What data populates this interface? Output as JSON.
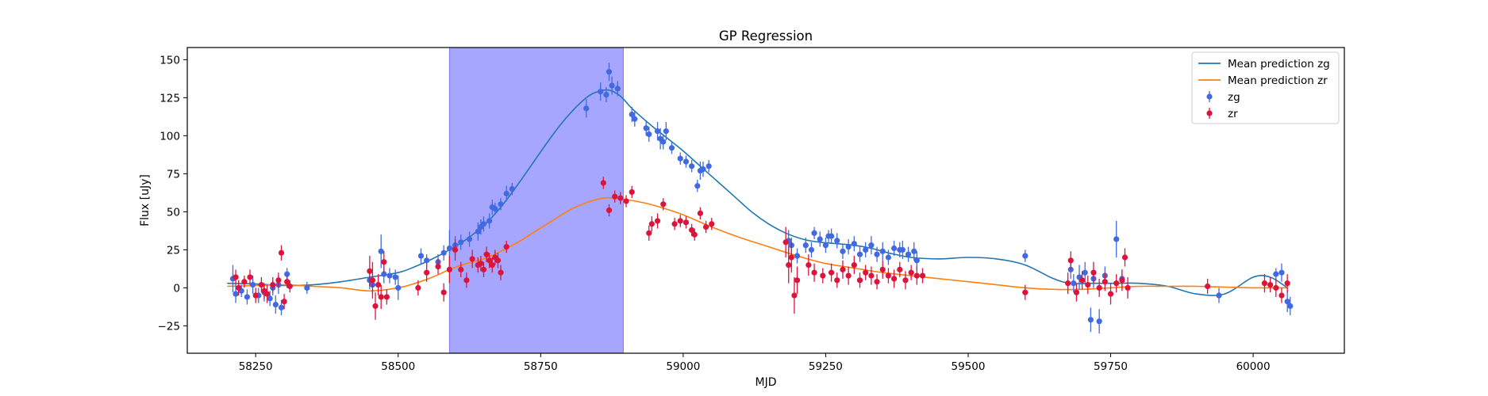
{
  "chart_data": {
    "type": "scatter",
    "title": "GP Regression",
    "xlabel": "MJD",
    "ylabel": "Flux [uJy]",
    "xlim": [
      58130,
      60160
    ],
    "ylim": [
      -43,
      158
    ],
    "xticks": [
      58250,
      58500,
      58750,
      59000,
      59250,
      59500,
      59750,
      60000
    ],
    "yticks": [
      -25,
      0,
      25,
      50,
      75,
      100,
      125,
      150
    ],
    "grid": false,
    "legend_position": "top-right",
    "shaded_region": {
      "x_start": 58590,
      "x_end": 58895,
      "color": "#a6a6ff"
    },
    "colors": {
      "zg_points": "#4169e1",
      "zr_points": "#dc143c",
      "zg_line": "#1f77b4",
      "zr_line": "#ff7f0e"
    },
    "legend": [
      {
        "label": "Mean prediction zg",
        "kind": "line",
        "color": "#1f77b4"
      },
      {
        "label": "Mean prediction zr",
        "kind": "line",
        "color": "#ff7f0e"
      },
      {
        "label": "zg",
        "kind": "errorbar",
        "color": "#4169e1"
      },
      {
        "label": "zr",
        "kind": "errorbar",
        "color": "#dc143c"
      }
    ],
    "lines": [
      {
        "name": "Mean prediction zg",
        "color": "#1f77b4",
        "x": [
          58200,
          58250,
          58300,
          58350,
          58400,
          58450,
          58500,
          58530,
          58560,
          58590,
          58620,
          58650,
          58680,
          58710,
          58740,
          58770,
          58800,
          58830,
          58850,
          58870,
          58890,
          58910,
          58940,
          58970,
          59000,
          59030,
          59060,
          59090,
          59120,
          59150,
          59180,
          59210,
          59240,
          59270,
          59300,
          59330,
          59360,
          59400,
          59450,
          59500,
          59550,
          59600,
          59650,
          59680,
          59720,
          59760,
          59800,
          59850,
          59900,
          59950,
          60000,
          60030,
          60060
        ],
        "y": [
          3,
          2.5,
          1.5,
          2,
          4,
          7,
          10,
          14,
          19,
          25,
          32,
          41,
          53,
          68,
          84,
          100,
          114,
          125,
          129,
          130,
          126,
          118,
          108,
          99,
          90,
          80,
          70,
          60,
          50,
          42,
          36,
          32,
          30,
          29,
          28,
          26,
          23,
          20,
          19,
          20,
          19,
          15,
          6,
          3,
          3,
          3,
          3,
          1,
          -4,
          -4,
          7,
          7,
          0
        ]
      },
      {
        "name": "Mean prediction zr",
        "color": "#ff7f0e",
        "x": [
          58200,
          58250,
          58300,
          58350,
          58400,
          58450,
          58500,
          58530,
          58560,
          58590,
          58620,
          58650,
          58680,
          58710,
          58740,
          58770,
          58800,
          58830,
          58860,
          58880,
          58900,
          58930,
          58960,
          59000,
          59050,
          59100,
          59150,
          59200,
          59250,
          59300,
          59350,
          59400,
          59450,
          59500,
          59550,
          59600,
          59650,
          59700,
          59750,
          59800,
          59850,
          59900,
          59950,
          60000,
          60060
        ],
        "y": [
          1,
          1.5,
          2,
          1,
          0,
          -2,
          0,
          3,
          7,
          12,
          16,
          19,
          24,
          30,
          37,
          44,
          51,
          56,
          59,
          59,
          58,
          56,
          53,
          48,
          40,
          33,
          27,
          21,
          16,
          13,
          10,
          8,
          6,
          4,
          2,
          0,
          -1,
          -1,
          0,
          1,
          1,
          1,
          0.5,
          0,
          0
        ]
      }
    ],
    "series": [
      {
        "name": "zg",
        "color": "#4169e1",
        "x": [
          58210,
          58215,
          58225,
          58235,
          58245,
          58255,
          58265,
          58275,
          58280,
          58285,
          58290,
          58295,
          58305,
          58340,
          58450,
          58455,
          58470,
          58475,
          58485,
          58495,
          58500,
          58540,
          58550,
          58570,
          58580,
          58590,
          58600,
          58610,
          58625,
          58640,
          58645,
          58650,
          58660,
          58665,
          58670,
          58680,
          58690,
          58700,
          58830,
          58855,
          58865,
          58870,
          58875,
          58885,
          58910,
          58915,
          58935,
          58940,
          58955,
          58960,
          58965,
          58970,
          58980,
          58995,
          59005,
          59015,
          59025,
          59030,
          59035,
          59045,
          59185,
          59190,
          59200,
          59215,
          59225,
          59230,
          59240,
          59250,
          59255,
          59260,
          59270,
          59280,
          59290,
          59300,
          59310,
          59320,
          59330,
          59340,
          59350,
          59360,
          59370,
          59380,
          59385,
          59395,
          59405,
          59410,
          59600,
          59680,
          59685,
          59695,
          59705,
          59715,
          59720,
          59730,
          59740,
          59760,
          59770,
          59940,
          60040,
          60050,
          60060,
          60065
        ],
        "y": [
          6,
          -4,
          -2,
          -6,
          2,
          -5,
          -3,
          -7,
          0,
          -11,
          2,
          -13,
          9,
          0,
          5,
          2,
          24,
          9,
          8,
          7,
          0,
          21,
          18,
          17,
          23,
          26,
          28,
          30,
          32,
          37,
          40,
          42,
          44,
          53,
          52,
          55,
          62,
          65,
          118,
          129,
          127,
          142,
          133,
          131,
          114,
          111,
          105,
          101,
          103,
          98,
          96,
          103,
          92,
          85,
          83,
          80,
          67,
          77,
          78,
          80,
          31,
          28,
          21,
          28,
          25,
          36,
          32,
          28,
          34,
          34,
          31,
          24,
          27,
          29,
          22,
          25,
          28,
          22,
          24,
          20,
          26,
          25,
          25,
          22,
          24,
          18,
          21,
          12,
          3,
          7,
          10,
          -21,
          6,
          -22,
          8,
          32,
          6,
          -5,
          9,
          10,
          -9,
          -12
        ],
        "err": [
          9,
          6,
          4,
          5,
          6,
          5,
          6,
          5,
          5,
          6,
          6,
          5,
          4,
          4,
          6,
          6,
          11,
          6,
          5,
          5,
          8,
          5,
          4,
          5,
          5,
          12,
          6,
          5,
          5,
          6,
          5,
          5,
          5,
          5,
          4,
          4,
          5,
          4,
          6,
          6,
          5,
          6,
          6,
          5,
          5,
          5,
          5,
          5,
          6,
          7,
          5,
          6,
          4,
          4,
          4,
          4,
          4,
          6,
          5,
          4,
          7,
          5,
          5,
          5,
          5,
          4,
          5,
          5,
          4,
          5,
          5,
          5,
          5,
          5,
          5,
          5,
          6,
          5,
          6,
          5,
          5,
          5,
          6,
          5,
          6,
          6,
          4,
          6,
          6,
          8,
          7,
          8,
          6,
          8,
          6,
          12,
          6,
          5,
          4,
          6,
          7,
          6
        ]
      },
      {
        "name": "zr",
        "color": "#dc143c",
        "x": [
          58215,
          58220,
          58230,
          58240,
          58250,
          58260,
          58265,
          58270,
          58280,
          58290,
          58295,
          58300,
          58305,
          58310,
          58450,
          58455,
          58460,
          58465,
          58470,
          58475,
          58480,
          58535,
          58550,
          58570,
          58580,
          58590,
          58600,
          58610,
          58620,
          58630,
          58640,
          58645,
          58650,
          58655,
          58660,
          58665,
          58670,
          58675,
          58680,
          58690,
          58860,
          58870,
          58880,
          58890,
          58900,
          58910,
          58940,
          58945,
          58955,
          58965,
          58985,
          58995,
          59005,
          59015,
          59020,
          59030,
          59040,
          59050,
          59180,
          59185,
          59190,
          59195,
          59200,
          59220,
          59230,
          59245,
          59260,
          59270,
          59280,
          59290,
          59300,
          59310,
          59320,
          59330,
          59340,
          59350,
          59360,
          59370,
          59380,
          59390,
          59400,
          59410,
          59420,
          59600,
          59675,
          59680,
          59690,
          59700,
          59710,
          59720,
          59730,
          59740,
          59750,
          59760,
          59770,
          59775,
          59780,
          59920,
          60020,
          60030,
          60040,
          60050,
          60060
        ],
        "y": [
          7,
          0,
          4,
          7,
          -5,
          2,
          -2,
          -4,
          2,
          5,
          23,
          -9,
          4,
          1,
          11,
          5,
          -12,
          2,
          -6,
          17,
          -6,
          0,
          10,
          14,
          -3,
          12,
          25,
          12,
          5,
          19,
          15,
          16,
          12,
          22,
          18,
          15,
          20,
          18,
          10,
          27,
          69,
          51,
          60,
          59,
          57,
          63,
          36,
          42,
          44,
          55,
          42,
          44,
          43,
          38,
          35,
          49,
          40,
          42,
          30,
          15,
          20,
          -5,
          5,
          15,
          10,
          8,
          10,
          5,
          12,
          8,
          15,
          5,
          10,
          8,
          4,
          12,
          8,
          6,
          12,
          5,
          10,
          8,
          8,
          -3,
          3,
          18,
          -3,
          5,
          2,
          10,
          0,
          4,
          -4,
          3,
          5,
          20,
          0,
          1,
          3,
          2,
          0,
          -5,
          3
        ],
        "err": [
          5,
          5,
          4,
          5,
          5,
          5,
          5,
          6,
          5,
          5,
          5,
          5,
          4,
          4,
          10,
          12,
          9,
          7,
          8,
          7,
          5,
          5,
          6,
          5,
          6,
          9,
          7,
          5,
          5,
          6,
          5,
          5,
          5,
          5,
          5,
          5,
          5,
          5,
          5,
          4,
          4,
          4,
          4,
          4,
          4,
          4,
          5,
          5,
          5,
          4,
          4,
          4,
          4,
          4,
          4,
          4,
          4,
          4,
          10,
          12,
          10,
          12,
          9,
          7,
          6,
          5,
          6,
          5,
          6,
          6,
          6,
          5,
          5,
          6,
          5,
          6,
          5,
          6,
          5,
          6,
          5,
          6,
          5,
          5,
          7,
          6,
          6,
          6,
          6,
          7,
          6,
          6,
          7,
          6,
          7,
          6,
          7,
          5,
          6,
          5,
          6,
          5,
          6
        ]
      }
    ]
  }
}
